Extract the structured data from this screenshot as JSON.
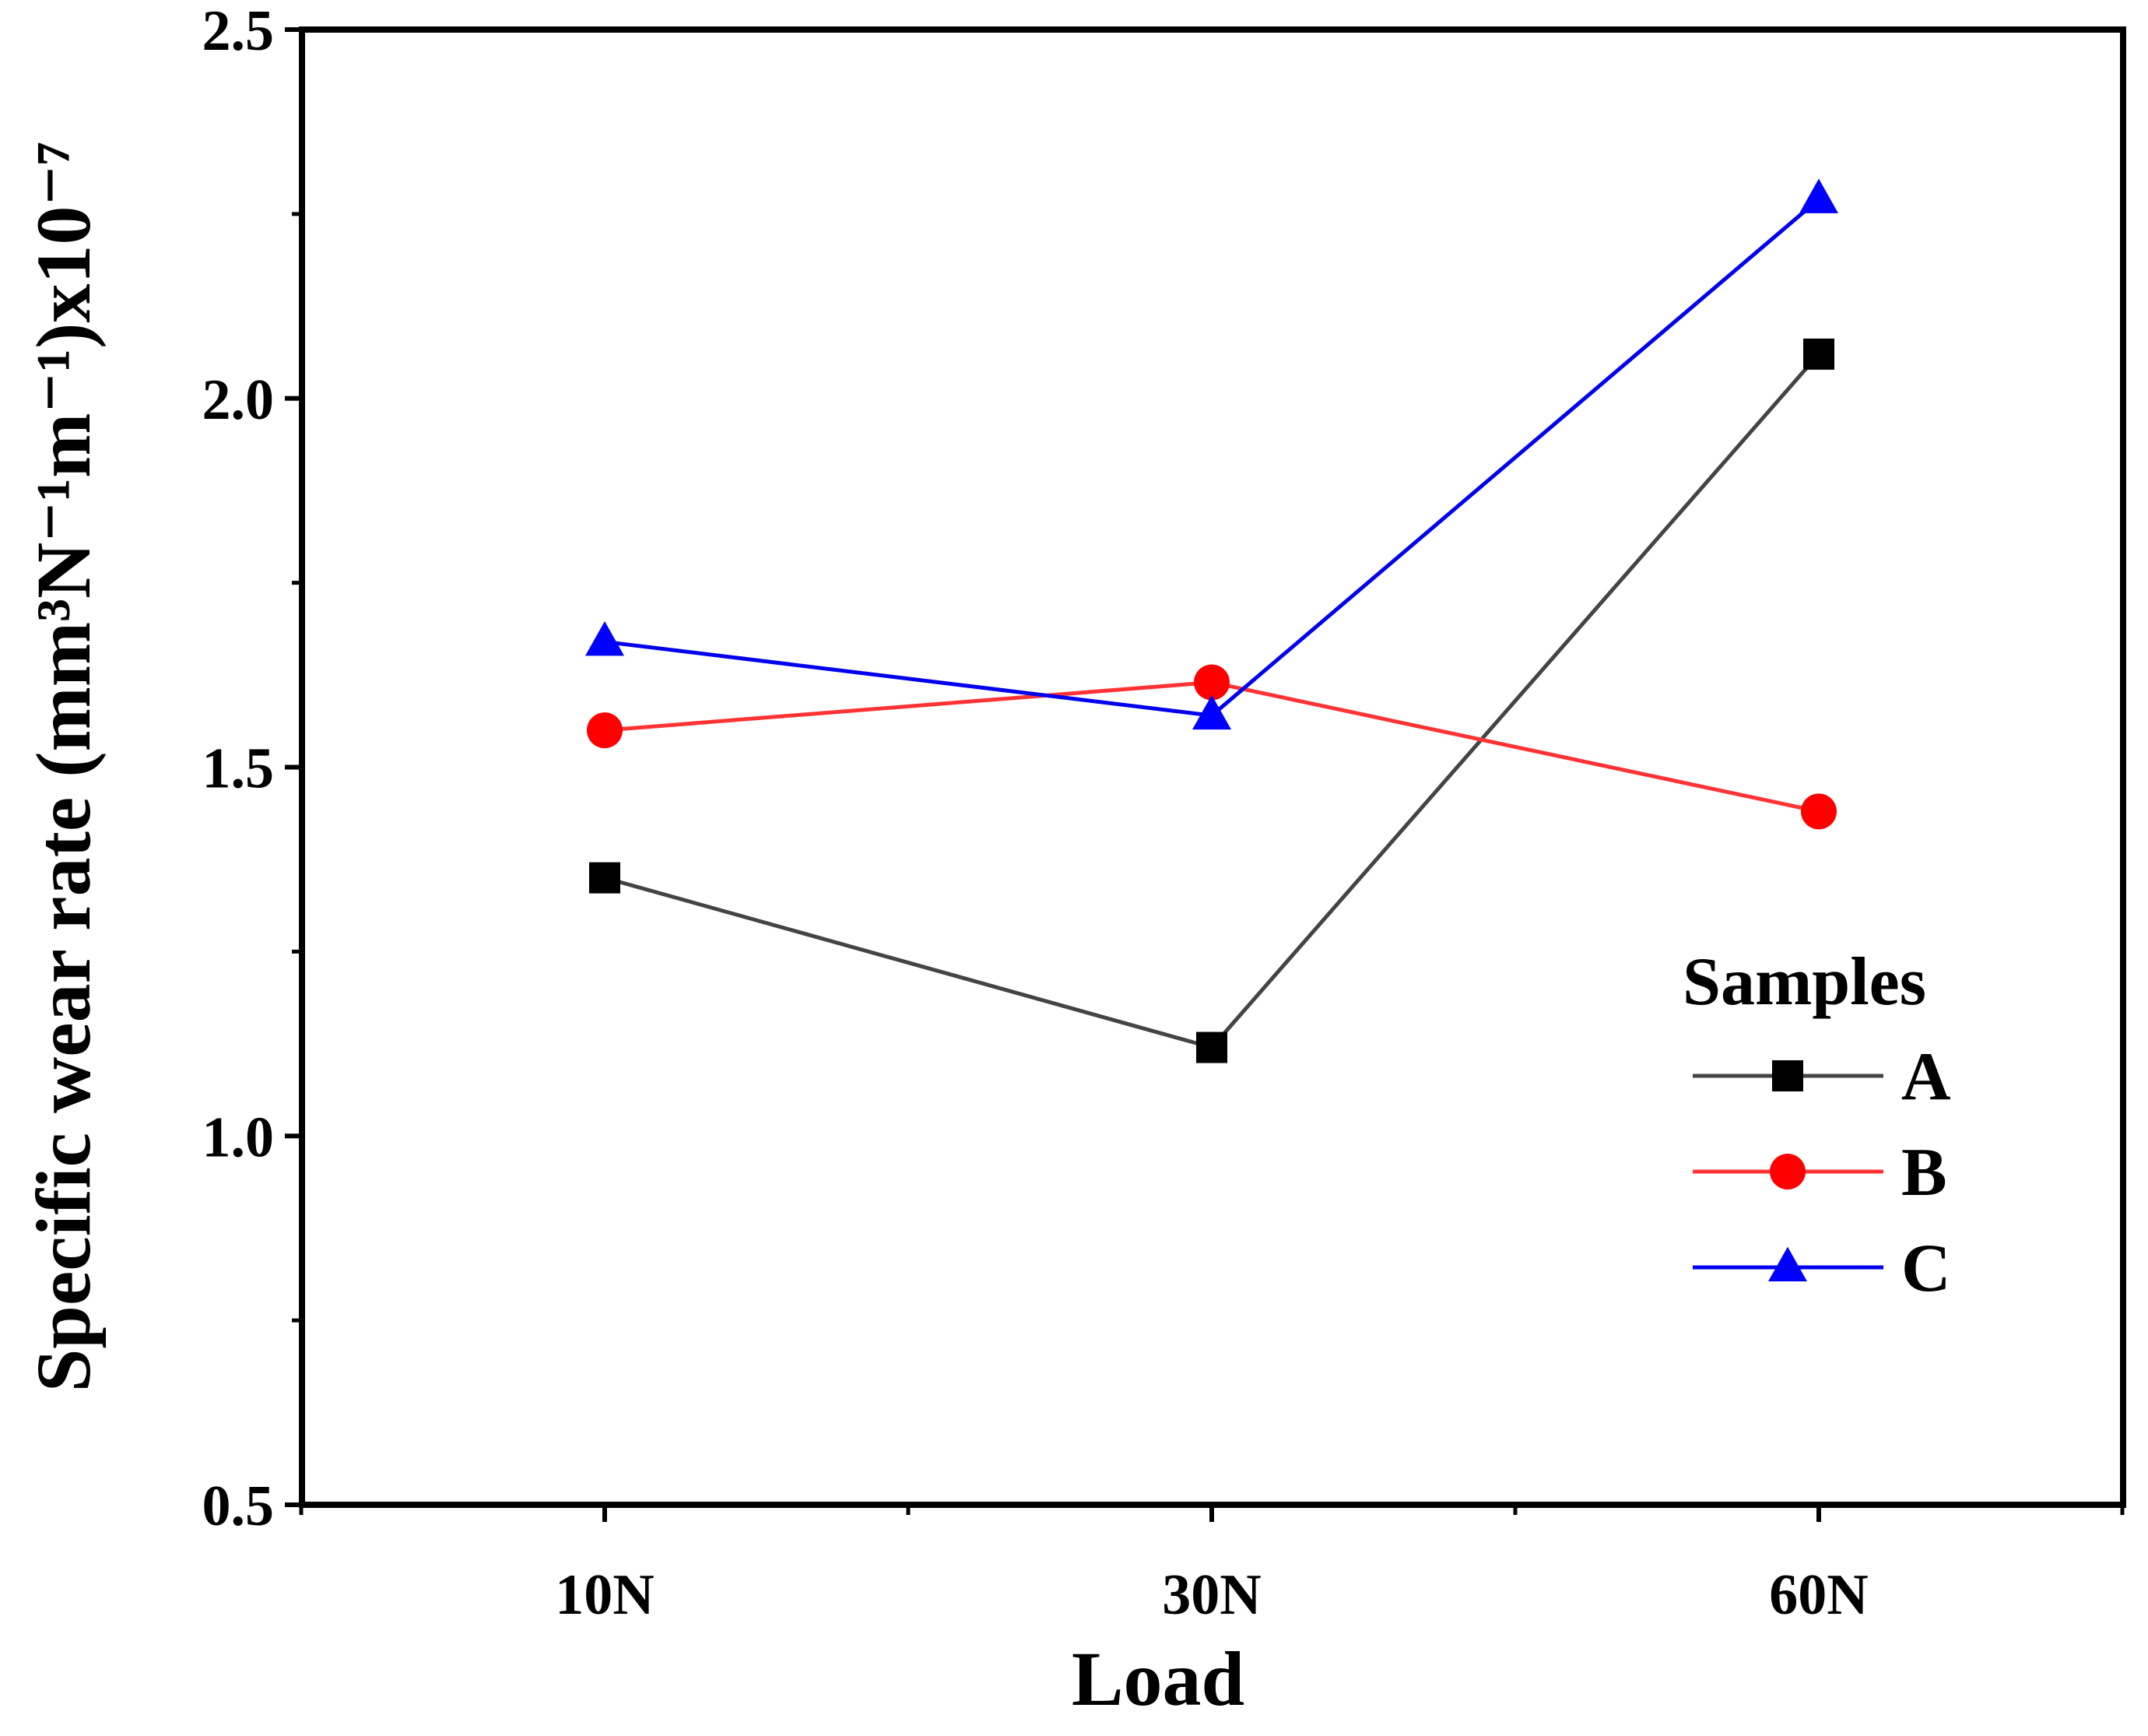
{
  "chart_data": {
    "type": "line",
    "title": "",
    "xlabel": "Load",
    "ylabel": "Specific wear rate (mm³N⁻¹m⁻¹)x10⁻⁷",
    "categories": [
      "10N",
      "30N",
      "60N"
    ],
    "ylim": [
      0.5,
      2.5
    ],
    "yticks": [
      0.5,
      1.0,
      1.5,
      2.0,
      2.5
    ],
    "ytick_labels": [
      "0.5",
      "1.0",
      "1.5",
      "2.0",
      "2.5"
    ],
    "grid": false,
    "legend": {
      "title": "Samples",
      "position": "right"
    },
    "series": [
      {
        "name": "A",
        "color": "#000000",
        "line_color": "#444444",
        "marker": "square",
        "values": [
          1.35,
          1.12,
          2.06
        ]
      },
      {
        "name": "B",
        "color": "#ff0000",
        "line_color": "#ff3333",
        "marker": "circle",
        "values": [
          1.55,
          1.615,
          1.44
        ]
      },
      {
        "name": "C",
        "color": "#0000ff",
        "line_color": "#0000ee",
        "marker": "triangle",
        "values": [
          1.67,
          1.57,
          2.27
        ]
      }
    ]
  }
}
